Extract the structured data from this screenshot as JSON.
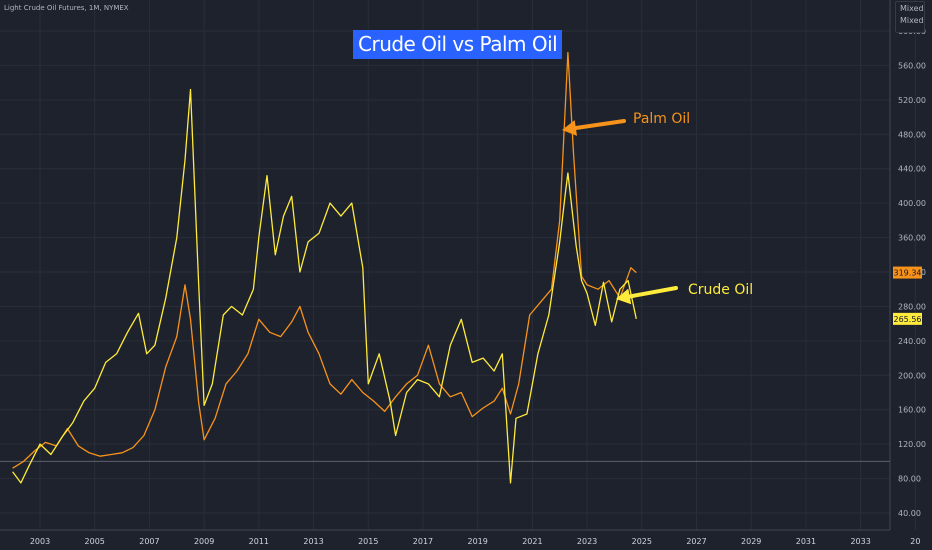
{
  "header": {
    "symbol": "Light Crude Oil Futures, 1M, NYMEX",
    "scale_modes": [
      "Mixed",
      "Mixed"
    ]
  },
  "chart_data": {
    "type": "line",
    "title": "Crude Oil vs Palm Oil",
    "xlabel": "",
    "ylabel": "",
    "x_ticks": [
      "2003",
      "2005",
      "2007",
      "2009",
      "2011",
      "2013",
      "2015",
      "2017",
      "2019",
      "2021",
      "2023",
      "2025",
      "2027",
      "2029",
      "2031",
      "2033",
      "20"
    ],
    "x_range": [
      2001.8,
      2034.0
    ],
    "y_ticks": [
      "40.00",
      "80.00",
      "120.00",
      "160.00",
      "200.00",
      "240.00",
      "280.00",
      "320.00",
      "360.00",
      "400.00",
      "440.00",
      "480.00",
      "520.00",
      "560.00",
      "600.00"
    ],
    "ylim": [
      30,
      600
    ],
    "reference_line": 100,
    "grid": true,
    "legend": "none",
    "series": [
      {
        "name": "Palm Oil",
        "color": "#f7931a",
        "last_value_label": "319.34",
        "points": [
          [
            2002.0,
            92
          ],
          [
            2002.4,
            100
          ],
          [
            2002.8,
            112
          ],
          [
            2003.2,
            122
          ],
          [
            2003.6,
            118
          ],
          [
            2004.0,
            138
          ],
          [
            2004.4,
            118
          ],
          [
            2004.8,
            110
          ],
          [
            2005.2,
            106
          ],
          [
            2005.6,
            108
          ],
          [
            2006.0,
            110
          ],
          [
            2006.4,
            116
          ],
          [
            2006.8,
            130
          ],
          [
            2007.2,
            160
          ],
          [
            2007.6,
            210
          ],
          [
            2008.0,
            245
          ],
          [
            2008.3,
            305
          ],
          [
            2008.5,
            265
          ],
          [
            2008.8,
            168
          ],
          [
            2009.0,
            125
          ],
          [
            2009.4,
            150
          ],
          [
            2009.8,
            190
          ],
          [
            2010.2,
            205
          ],
          [
            2010.6,
            225
          ],
          [
            2011.0,
            265
          ],
          [
            2011.4,
            250
          ],
          [
            2011.8,
            245
          ],
          [
            2012.2,
            262
          ],
          [
            2012.5,
            280
          ],
          [
            2012.8,
            250
          ],
          [
            2013.2,
            225
          ],
          [
            2013.6,
            190
          ],
          [
            2014.0,
            178
          ],
          [
            2014.4,
            195
          ],
          [
            2014.8,
            180
          ],
          [
            2015.2,
            170
          ],
          [
            2015.6,
            158
          ],
          [
            2016.0,
            175
          ],
          [
            2016.4,
            190
          ],
          [
            2016.8,
            200
          ],
          [
            2017.2,
            235
          ],
          [
            2017.6,
            190
          ],
          [
            2018.0,
            175
          ],
          [
            2018.4,
            180
          ],
          [
            2018.8,
            152
          ],
          [
            2019.2,
            162
          ],
          [
            2019.6,
            170
          ],
          [
            2019.9,
            185
          ],
          [
            2020.2,
            155
          ],
          [
            2020.5,
            190
          ],
          [
            2020.9,
            270
          ],
          [
            2021.3,
            285
          ],
          [
            2021.7,
            300
          ],
          [
            2022.0,
            380
          ],
          [
            2022.2,
            510
          ],
          [
            2022.3,
            575
          ],
          [
            2022.5,
            460
          ],
          [
            2022.8,
            315
          ],
          [
            2023.0,
            305
          ],
          [
            2023.4,
            300
          ],
          [
            2023.8,
            310
          ],
          [
            2024.2,
            290
          ],
          [
            2024.6,
            325
          ],
          [
            2024.8,
            319.34
          ]
        ]
      },
      {
        "name": "Crude Oil",
        "color": "#ffeb3b",
        "last_value_label": "265.56",
        "points": [
          [
            2002.0,
            88
          ],
          [
            2002.3,
            75
          ],
          [
            2002.6,
            95
          ],
          [
            2003.0,
            120
          ],
          [
            2003.4,
            108
          ],
          [
            2003.8,
            128
          ],
          [
            2004.2,
            145
          ],
          [
            2004.6,
            170
          ],
          [
            2005.0,
            185
          ],
          [
            2005.4,
            215
          ],
          [
            2005.8,
            225
          ],
          [
            2006.2,
            250
          ],
          [
            2006.6,
            272
          ],
          [
            2006.9,
            225
          ],
          [
            2007.2,
            235
          ],
          [
            2007.6,
            290
          ],
          [
            2008.0,
            360
          ],
          [
            2008.3,
            450
          ],
          [
            2008.5,
            532
          ],
          [
            2008.8,
            305
          ],
          [
            2009.0,
            165
          ],
          [
            2009.3,
            190
          ],
          [
            2009.7,
            270
          ],
          [
            2010.0,
            280
          ],
          [
            2010.4,
            270
          ],
          [
            2010.8,
            300
          ],
          [
            2011.0,
            360
          ],
          [
            2011.3,
            432
          ],
          [
            2011.6,
            340
          ],
          [
            2011.9,
            385
          ],
          [
            2012.2,
            408
          ],
          [
            2012.5,
            320
          ],
          [
            2012.8,
            355
          ],
          [
            2013.2,
            365
          ],
          [
            2013.6,
            400
          ],
          [
            2014.0,
            385
          ],
          [
            2014.4,
            400
          ],
          [
            2014.8,
            325
          ],
          [
            2015.0,
            190
          ],
          [
            2015.4,
            225
          ],
          [
            2015.8,
            170
          ],
          [
            2016.0,
            130
          ],
          [
            2016.4,
            180
          ],
          [
            2016.8,
            195
          ],
          [
            2017.2,
            190
          ],
          [
            2017.6,
            175
          ],
          [
            2018.0,
            235
          ],
          [
            2018.4,
            265
          ],
          [
            2018.8,
            215
          ],
          [
            2019.2,
            220
          ],
          [
            2019.6,
            205
          ],
          [
            2019.9,
            225
          ],
          [
            2020.2,
            75
          ],
          [
            2020.4,
            150
          ],
          [
            2020.8,
            155
          ],
          [
            2021.2,
            225
          ],
          [
            2021.6,
            270
          ],
          [
            2022.0,
            355
          ],
          [
            2022.2,
            410
          ],
          [
            2022.3,
            435
          ],
          [
            2022.6,
            350
          ],
          [
            2022.8,
            310
          ],
          [
            2023.0,
            295
          ],
          [
            2023.3,
            258
          ],
          [
            2023.6,
            308
          ],
          [
            2023.9,
            262
          ],
          [
            2024.2,
            300
          ],
          [
            2024.5,
            310
          ],
          [
            2024.8,
            265.56
          ]
        ]
      }
    ],
    "annotations": [
      {
        "text": "Palm Oil",
        "color": "#f7931a"
      },
      {
        "text": "Crude Oil",
        "color": "#ffeb3b"
      }
    ]
  }
}
